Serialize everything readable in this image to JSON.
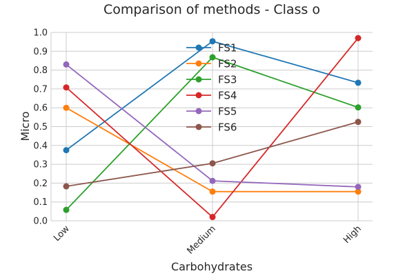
{
  "chart_data": {
    "type": "line",
    "title": "Comparison of methods - Class o",
    "xlabel": "Carbohydrates",
    "ylabel": "Micro",
    "categories": [
      "Low",
      "Medium",
      "High"
    ],
    "ylim": [
      0.0,
      1.0
    ],
    "yticks": [
      "0.0",
      "0.1",
      "0.2",
      "0.3",
      "0.4",
      "0.5",
      "0.6",
      "0.7",
      "0.8",
      "0.9",
      "1.0"
    ],
    "grid": true,
    "legend_position": "top-center",
    "series": [
      {
        "name": "FS1",
        "color": "#1f77b4",
        "values": [
          0.375,
          0.953,
          0.733
        ]
      },
      {
        "name": "FS2",
        "color": "#ff7f0e",
        "values": [
          0.6,
          0.155,
          0.155
        ]
      },
      {
        "name": "FS3",
        "color": "#2ca02c",
        "values": [
          0.058,
          0.868,
          0.602
        ]
      },
      {
        "name": "FS4",
        "color": "#d62728",
        "values": [
          0.708,
          0.02,
          0.97
        ]
      },
      {
        "name": "FS5",
        "color": "#9467bd",
        "values": [
          0.83,
          0.212,
          0.18
        ]
      },
      {
        "name": "FS6",
        "color": "#8c564b",
        "values": [
          0.183,
          0.305,
          0.525
        ]
      }
    ]
  }
}
